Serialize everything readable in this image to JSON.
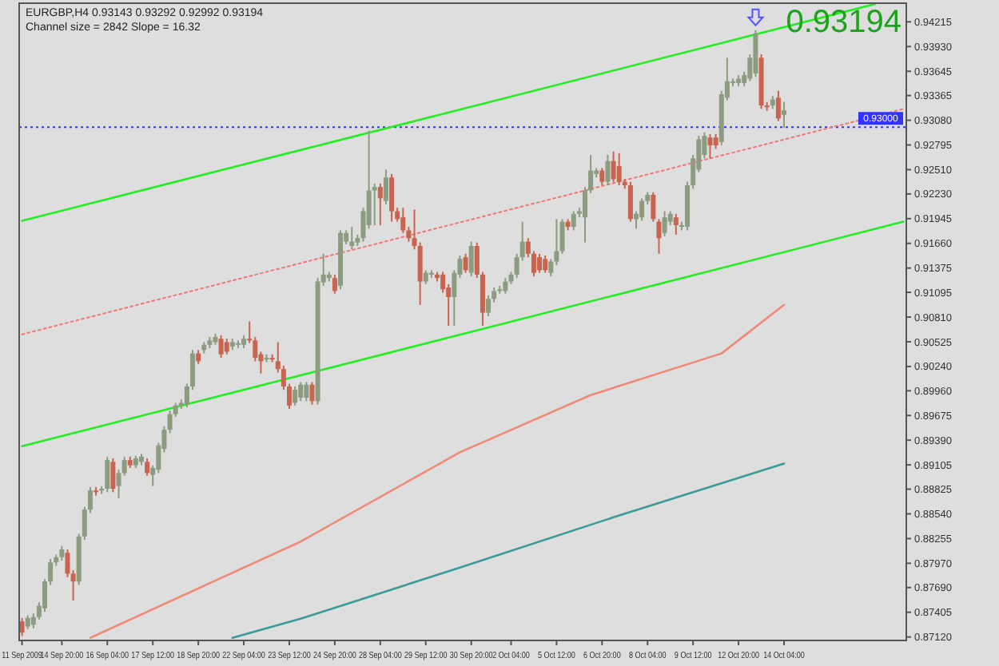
{
  "chart_data": {
    "type": "candlestick",
    "title": "EURGBP,H4  0.93143 0.93292 0.92992 0.93194",
    "subtitle": "Channel size = 2842 Slope = 16.32",
    "annotations": [
      "0.93194"
    ],
    "categories": [
      "11 Sep 2009",
      null,
      null,
      null,
      null,
      null,
      null,
      "14 Sep 20:00",
      null,
      null,
      null,
      null,
      null,
      null,
      null,
      "16 Sep 04:00",
      null,
      null,
      null,
      null,
      null,
      null,
      null,
      "17 Sep 12:00",
      null,
      null,
      null,
      null,
      null,
      null,
      null,
      "18 Sep 20:00",
      null,
      null,
      null,
      null,
      null,
      null,
      null,
      "22 Sep 04:00",
      null,
      null,
      null,
      null,
      null,
      null,
      null,
      "23 Sep 12:00",
      null,
      null,
      null,
      null,
      null,
      null,
      null,
      "24 Sep 20:00",
      null,
      null,
      null,
      null,
      null,
      null,
      null,
      "28 Sep 04:00",
      null,
      null,
      null,
      null,
      null,
      null,
      null,
      "29 Sep 12:00",
      null,
      null,
      null,
      null,
      null,
      null,
      null,
      "30 Sep 20:00",
      null,
      null,
      null,
      null,
      null,
      null,
      "2 Oct 04:00",
      null,
      null,
      null,
      null,
      null,
      null,
      null,
      "5 Oct 12:00",
      null,
      null,
      null,
      null,
      null,
      null,
      null,
      "6 Oct 20:00",
      null,
      null,
      null,
      null,
      null,
      null,
      null,
      "8 Oct 04:00",
      null,
      null,
      null,
      null,
      null,
      null,
      null,
      "9 Oct 12:00",
      null,
      null,
      null,
      null,
      null,
      null,
      null,
      "12 Oct 20:00",
      null,
      null,
      null,
      null,
      null,
      null,
      null,
      "14 Oct 04:00",
      null,
      null,
      null,
      null,
      null,
      null,
      null,
      null,
      null,
      null,
      null,
      null,
      null,
      null,
      null,
      null,
      null,
      null,
      null,
      null,
      null
    ],
    "ohlc": [
      [
        0.873,
        0.8734,
        0.8713,
        0.8717
      ],
      [
        0.8724,
        0.8737,
        0.8721,
        0.8734
      ],
      [
        0.8726,
        0.8739,
        0.8722,
        0.8735
      ],
      [
        0.8735,
        0.8752,
        0.8732,
        0.8748
      ],
      [
        0.8745,
        0.8779,
        0.8741,
        0.8776
      ],
      [
        0.8776,
        0.8802,
        0.8772,
        0.8798
      ],
      [
        0.8798,
        0.8807,
        0.8794,
        0.8804
      ],
      [
        0.8804,
        0.8817,
        0.88,
        0.8813
      ],
      [
        0.8809,
        0.8813,
        0.8781,
        0.8785
      ],
      [
        0.8785,
        0.8789,
        0.8754,
        0.8776
      ],
      [
        0.8776,
        0.8831,
        0.8772,
        0.8828
      ],
      [
        0.8828,
        0.8862,
        0.8824,
        0.8859
      ],
      [
        0.8859,
        0.8885,
        0.8855,
        0.8881
      ],
      [
        0.8881,
        0.8885,
        0.8875,
        0.8879
      ],
      [
        0.8881,
        0.8886,
        0.8877,
        0.8883
      ],
      [
        0.8883,
        0.892,
        0.8879,
        0.8916
      ],
      [
        0.8914,
        0.8918,
        0.8879,
        0.8883
      ],
      [
        0.8886,
        0.8905,
        0.8872,
        0.8901
      ],
      [
        0.8901,
        0.892,
        0.8898,
        0.8916
      ],
      [
        0.8916,
        0.892,
        0.8907,
        0.891
      ],
      [
        0.891,
        0.8921,
        0.8907,
        0.8918
      ],
      [
        0.8914,
        0.8923,
        0.891,
        0.892
      ],
      [
        0.8914,
        0.8918,
        0.8898,
        0.8901
      ],
      [
        0.8899,
        0.891,
        0.8886,
        0.8907
      ],
      [
        0.8905,
        0.8936,
        0.8901,
        0.8933
      ],
      [
        0.8929,
        0.8955,
        0.8925,
        0.8951
      ],
      [
        0.8951,
        0.8973,
        0.8947,
        0.8969
      ],
      [
        0.8969,
        0.8982,
        0.8966,
        0.8979
      ],
      [
        0.8979,
        0.8986,
        0.8975,
        0.8982
      ],
      [
        0.898,
        0.9004,
        0.8977,
        0.9001
      ],
      [
        0.9001,
        0.9043,
        0.8997,
        0.9039
      ],
      [
        0.9039,
        0.9043,
        0.9027,
        0.903
      ],
      [
        0.9043,
        0.9052,
        0.9039,
        0.9049
      ],
      [
        0.9049,
        0.9058,
        0.9045,
        0.9054
      ],
      [
        0.9052,
        0.9062,
        0.9049,
        0.9058
      ],
      [
        0.9056,
        0.906,
        0.9034,
        0.9038
      ],
      [
        0.9052,
        0.9056,
        0.9038,
        0.9041
      ],
      [
        0.9047,
        0.9056,
        0.9043,
        0.9052
      ],
      [
        0.9049,
        0.9054,
        0.9045,
        0.9051
      ],
      [
        0.9049,
        0.906,
        0.9045,
        0.9056
      ],
      [
        0.9056,
        0.9076,
        0.9051,
        0.9054
      ],
      [
        0.9054,
        0.9058,
        0.903,
        0.9034
      ],
      [
        0.9038,
        0.9041,
        0.9016,
        0.903
      ],
      [
        0.9032,
        0.9038,
        0.9029,
        0.9034
      ],
      [
        0.9034,
        0.9038,
        0.9029,
        0.9032
      ],
      [
        0.903,
        0.9052,
        0.9017,
        0.9021
      ],
      [
        0.9021,
        0.9025,
        0.8997,
        0.9001
      ],
      [
        0.9001,
        0.9004,
        0.8975,
        0.8979
      ],
      [
        0.8982,
        0.9001,
        0.8979,
        0.8997
      ],
      [
        0.8988,
        0.9006,
        0.8984,
        0.9003
      ],
      [
        0.8988,
        0.9006,
        0.8984,
        0.9003
      ],
      [
        0.9003,
        0.9006,
        0.898,
        0.8984
      ],
      [
        0.8984,
        0.9126,
        0.898,
        0.9122
      ],
      [
        0.9121,
        0.9154,
        0.9117,
        0.913
      ],
      [
        0.9126,
        0.9133,
        0.9122,
        0.913
      ],
      [
        0.9126,
        0.913,
        0.9108,
        0.9111
      ],
      [
        0.9117,
        0.9181,
        0.9113,
        0.9178
      ],
      [
        0.9168,
        0.9181,
        0.9165,
        0.9178
      ],
      [
        0.9163,
        0.9185,
        0.9159,
        0.9168
      ],
      [
        0.9167,
        0.9176,
        0.9163,
        0.9172
      ],
      [
        0.9172,
        0.9207,
        0.9168,
        0.9203
      ],
      [
        0.9187,
        0.9296,
        0.9183,
        0.9227
      ],
      [
        0.9227,
        0.9235,
        0.9187,
        0.9231
      ],
      [
        0.9231,
        0.9235,
        0.9187,
        0.9218
      ],
      [
        0.9215,
        0.9251,
        0.9211,
        0.9242
      ],
      [
        0.9242,
        0.9246,
        0.9191,
        0.9203
      ],
      [
        0.9203,
        0.9207,
        0.9191,
        0.9194
      ],
      [
        0.9196,
        0.9207,
        0.9178,
        0.9181
      ],
      [
        0.9181,
        0.9185,
        0.9168,
        0.9172
      ],
      [
        0.9172,
        0.9205,
        0.9159,
        0.9163
      ],
      [
        0.9163,
        0.9167,
        0.9095,
        0.9122
      ],
      [
        0.9122,
        0.9135,
        0.9119,
        0.9132
      ],
      [
        0.913,
        0.9135,
        0.9126,
        0.9132
      ],
      [
        0.913,
        0.9133,
        0.9122,
        0.9126
      ],
      [
        0.913,
        0.9133,
        0.9109,
        0.9113
      ],
      [
        0.9115,
        0.9119,
        0.9071,
        0.9104
      ],
      [
        0.9104,
        0.9135,
        0.9071,
        0.9132
      ],
      [
        0.913,
        0.9152,
        0.9126,
        0.9148
      ],
      [
        0.915,
        0.9154,
        0.9132,
        0.9135
      ],
      [
        0.9132,
        0.9168,
        0.9128,
        0.9163
      ],
      [
        0.9163,
        0.9167,
        0.9126,
        0.913
      ],
      [
        0.913,
        0.9133,
        0.9071,
        0.9086
      ],
      [
        0.9086,
        0.9106,
        0.9082,
        0.9102
      ],
      [
        0.9102,
        0.9115,
        0.9098,
        0.9111
      ],
      [
        0.9111,
        0.9117,
        0.9108,
        0.9113
      ],
      [
        0.9111,
        0.9126,
        0.9108,
        0.9122
      ],
      [
        0.9122,
        0.9133,
        0.9119,
        0.913
      ],
      [
        0.913,
        0.9154,
        0.9126,
        0.915
      ],
      [
        0.915,
        0.9191,
        0.9146,
        0.9168
      ],
      [
        0.9168,
        0.9172,
        0.915,
        0.9154
      ],
      [
        0.9154,
        0.9157,
        0.9128,
        0.9132
      ],
      [
        0.915,
        0.9154,
        0.9132,
        0.9135
      ],
      [
        0.9148,
        0.9152,
        0.9132,
        0.9135
      ],
      [
        0.9132,
        0.9148,
        0.9128,
        0.9145
      ],
      [
        0.9145,
        0.9194,
        0.9141,
        0.9157
      ],
      [
        0.9157,
        0.9194,
        0.9154,
        0.9191
      ],
      [
        0.9191,
        0.9194,
        0.9181,
        0.9185
      ],
      [
        0.9185,
        0.9203,
        0.9181,
        0.92
      ],
      [
        0.92,
        0.9207,
        0.9196,
        0.9203
      ],
      [
        0.9196,
        0.9231,
        0.9167,
        0.9227
      ],
      [
        0.9227,
        0.9268,
        0.9224,
        0.925
      ],
      [
        0.9246,
        0.9253,
        0.9242,
        0.925
      ],
      [
        0.925,
        0.9253,
        0.9233,
        0.9237
      ],
      [
        0.9237,
        0.9268,
        0.9233,
        0.9261
      ],
      [
        0.9261,
        0.9272,
        0.9237,
        0.924
      ],
      [
        0.9255,
        0.927,
        0.9233,
        0.9237
      ],
      [
        0.9237,
        0.924,
        0.9229,
        0.9233
      ],
      [
        0.9233,
        0.9237,
        0.9191,
        0.9194
      ],
      [
        0.9194,
        0.9203,
        0.9183,
        0.92
      ],
      [
        0.9196,
        0.9218,
        0.9192,
        0.9215
      ],
      [
        0.9215,
        0.9225,
        0.9211,
        0.9222
      ],
      [
        0.9222,
        0.9225,
        0.9191,
        0.9194
      ],
      [
        0.9191,
        0.9194,
        0.9154,
        0.9172
      ],
      [
        0.9178,
        0.9203,
        0.9174,
        0.9196
      ],
      [
        0.9191,
        0.9203,
        0.9187,
        0.92
      ],
      [
        0.9196,
        0.92,
        0.9176,
        0.9187
      ],
      [
        0.9185,
        0.9191,
        0.9181,
        0.9187
      ],
      [
        0.9185,
        0.9237,
        0.9181,
        0.9233
      ],
      [
        0.9233,
        0.9268,
        0.9229,
        0.9264
      ],
      [
        0.9251,
        0.929,
        0.9248,
        0.9286
      ],
      [
        0.9268,
        0.9294,
        0.9264,
        0.929
      ],
      [
        0.9288,
        0.9292,
        0.9264,
        0.9279
      ],
      [
        0.9288,
        0.9292,
        0.9275,
        0.9279
      ],
      [
        0.9283,
        0.9342,
        0.9279,
        0.9338
      ],
      [
        0.9334,
        0.938,
        0.9331,
        0.9353
      ],
      [
        0.9351,
        0.9356,
        0.9347,
        0.9353
      ],
      [
        0.9351,
        0.936,
        0.9347,
        0.9356
      ],
      [
        0.9351,
        0.9364,
        0.9347,
        0.936
      ],
      [
        0.9356,
        0.9384,
        0.9353,
        0.938
      ],
      [
        0.9362,
        0.9412,
        0.9358,
        0.9408
      ],
      [
        0.938,
        0.9384,
        0.9321,
        0.9325
      ],
      [
        0.9325,
        0.9329,
        0.9319,
        0.9323
      ],
      [
        0.9325,
        0.9336,
        0.9321,
        0.9332
      ],
      [
        0.9334,
        0.9342,
        0.9307,
        0.931
      ],
      [
        0.93143,
        0.93292,
        0.92992,
        0.93194
      ],
      null,
      null,
      null,
      null,
      null,
      null,
      null,
      null,
      null,
      null,
      null,
      null,
      null,
      null,
      null,
      null,
      null,
      null,
      null,
      null,
      null
    ],
    "colors": [
      "#c86450",
      "#8c9c80",
      "#8c9c80",
      "#8c9c80",
      "#8c9c80",
      "#8c9c80",
      "#8c9c80",
      "#8c9c80",
      "#c86450",
      "#c86450",
      "#8c9c80",
      "#8c9c80",
      "#8c9c80",
      "#c86450",
      "#8c9c80",
      "#8c9c80",
      "#c86450",
      "#8c9c80",
      "#8c9c80",
      "#c86450",
      "#8c9c80",
      "#8c9c80",
      "#c86450",
      "#8c9c80",
      "#8c9c80",
      "#8c9c80",
      "#8c9c80",
      "#8c9c80",
      "#8c9c80",
      "#8c9c80",
      "#8c9c80",
      "#c86450",
      "#8c9c80",
      "#8c9c80",
      "#8c9c80",
      "#c86450",
      "#c86450",
      "#8c9c80",
      "#8c9c80",
      "#8c9c80",
      "#c86450",
      "#c86450",
      "#c86450",
      "#8c9c80",
      "#c86450",
      "#c86450",
      "#c86450",
      "#c86450",
      "#8c9c80",
      "#8c9c80",
      "#8c9c80",
      "#c86450",
      "#8c9c80",
      "#8c9c80",
      "#8c9c80",
      "#c86450",
      "#8c9c80",
      "#8c9c80",
      "#8c9c80",
      "#8c9c80",
      "#8c9c80",
      "#8c9c80",
      "#8c9c80",
      "#c86450",
      "#8c9c80",
      "#c86450",
      "#c86450",
      "#c86450",
      "#c86450",
      "#c86450",
      "#c86450",
      "#8c9c80",
      "#8c9c80",
      "#c86450",
      "#c86450",
      "#c86450",
      "#8c9c80",
      "#8c9c80",
      "#c86450",
      "#8c9c80",
      "#c86450",
      "#c86450",
      "#8c9c80",
      "#8c9c80",
      "#8c9c80",
      "#8c9c80",
      "#8c9c80",
      "#8c9c80",
      "#8c9c80",
      "#c86450",
      "#c86450",
      "#c86450",
      "#c86450",
      "#8c9c80",
      "#8c9c80",
      "#8c9c80",
      "#c86450",
      "#8c9c80",
      "#8c9c80",
      "#8c9c80",
      "#8c9c80",
      "#8c9c80",
      "#c86450",
      "#8c9c80",
      "#c86450",
      "#c86450",
      "#c86450",
      "#c86450",
      "#8c9c80",
      "#8c9c80",
      "#8c9c80",
      "#c86450",
      "#c86450",
      "#8c9c80",
      "#8c9c80",
      "#c86450",
      "#8c9c80",
      "#8c9c80",
      "#8c9c80",
      "#8c9c80",
      "#8c9c80",
      "#c86450",
      "#c86450",
      "#8c9c80",
      "#8c9c80",
      "#8c9c80",
      "#8c9c80",
      "#8c9c80",
      "#8c9c80",
      "#8c9c80",
      "#c86450",
      "#c86450",
      "#8c9c80",
      "#c86450",
      "#8c9c80",
      null,
      null,
      null,
      null,
      null,
      null,
      null,
      null,
      null,
      null,
      null,
      null,
      null,
      null,
      null,
      null,
      null,
      null,
      null,
      null,
      null
    ],
    "series": [
      {
        "type": "line",
        "values": [
          0.9192,
          null,
          null,
          null,
          null,
          null,
          null,
          null,
          null,
          null,
          null,
          null,
          null,
          null,
          null,
          null,
          null,
          null,
          null,
          null,
          null,
          null,
          null,
          null,
          null,
          null,
          null,
          null,
          null,
          null,
          null,
          null,
          null,
          null,
          null,
          null,
          null,
          null,
          null,
          null,
          null,
          null,
          null,
          null,
          null,
          null,
          null,
          null,
          null,
          null,
          null,
          null,
          null,
          null,
          null,
          null,
          null,
          null,
          null,
          null,
          null,
          null,
          null,
          null,
          null,
          null,
          null,
          null,
          null,
          null,
          null,
          null,
          null,
          null,
          null,
          null,
          null,
          null,
          null,
          null,
          null,
          null,
          null,
          null,
          null,
          null,
          null,
          null,
          null,
          null,
          null,
          null,
          null,
          null,
          null,
          null,
          null,
          null,
          null,
          null,
          null,
          null,
          null,
          null,
          null,
          null,
          null,
          null,
          null,
          null,
          null,
          null,
          null,
          null,
          null,
          null,
          null,
          null,
          null,
          null,
          null,
          null,
          null,
          null,
          null,
          null,
          null,
          null,
          null,
          null,
          null,
          null,
          null,
          null,
          null,
          null,
          null,
          null,
          null,
          null,
          null,
          null,
          null,
          null,
          null,
          null,
          null,
          null,
          null,
          null,
          0.9442,
          null,
          null,
          null,
          null,
          null
        ],
        "color": "#22ee22",
        "line_style": "solid"
      },
      {
        "type": "line",
        "values": [
          0.9061,
          null,
          null,
          null,
          null,
          null,
          null,
          null,
          null,
          null,
          null,
          null,
          null,
          null,
          null,
          null,
          null,
          null,
          null,
          null,
          null,
          null,
          null,
          null,
          null,
          null,
          null,
          null,
          null,
          null,
          null,
          null,
          null,
          null,
          null,
          null,
          null,
          null,
          null,
          null,
          null,
          null,
          null,
          null,
          null,
          null,
          null,
          null,
          null,
          null,
          null,
          null,
          null,
          null,
          null,
          null,
          null,
          null,
          null,
          null,
          null,
          null,
          null,
          null,
          null,
          null,
          null,
          null,
          null,
          null,
          null,
          null,
          null,
          null,
          null,
          null,
          null,
          null,
          null,
          null,
          null,
          null,
          null,
          null,
          null,
          null,
          null,
          null,
          null,
          null,
          null,
          null,
          null,
          null,
          null,
          null,
          null,
          null,
          null,
          null,
          null,
          null,
          null,
          null,
          null,
          null,
          null,
          null,
          null,
          null,
          null,
          null,
          null,
          null,
          null,
          null,
          null,
          null,
          null,
          null,
          null,
          null,
          null,
          null,
          null,
          null,
          null,
          null,
          null,
          null,
          null,
          null,
          null,
          null,
          null,
          null,
          null,
          null,
          null,
          null,
          null,
          null,
          null,
          null,
          null,
          null,
          null,
          null,
          null,
          null,
          null,
          null,
          null,
          null,
          null,
          0.9321
        ],
        "color": "#f07878",
        "line_style": "dotted"
      },
      {
        "type": "line",
        "values": [
          0.8932,
          null,
          null,
          null,
          null,
          null,
          null,
          null,
          null,
          null,
          null,
          null,
          null,
          null,
          null,
          null,
          null,
          null,
          null,
          null,
          null,
          null,
          null,
          null,
          null,
          null,
          null,
          null,
          null,
          null,
          null,
          null,
          null,
          null,
          null,
          null,
          null,
          null,
          null,
          null,
          null,
          null,
          null,
          null,
          null,
          null,
          null,
          null,
          null,
          null,
          null,
          null,
          null,
          null,
          null,
          null,
          null,
          null,
          null,
          null,
          null,
          null,
          null,
          null,
          null,
          null,
          null,
          null,
          null,
          null,
          null,
          null,
          null,
          null,
          null,
          null,
          null,
          null,
          null,
          null,
          null,
          null,
          null,
          null,
          null,
          null,
          null,
          null,
          null,
          null,
          null,
          null,
          null,
          null,
          null,
          null,
          null,
          null,
          null,
          null,
          null,
          null,
          null,
          null,
          null,
          null,
          null,
          null,
          null,
          null,
          null,
          null,
          null,
          null,
          null,
          null,
          null,
          null,
          null,
          null,
          null,
          null,
          null,
          null,
          null,
          null,
          null,
          null,
          null,
          null,
          null,
          null,
          null,
          null,
          null,
          null,
          null,
          null,
          null,
          null,
          null,
          null,
          null,
          null,
          null,
          null,
          null,
          null,
          null,
          null,
          null,
          null,
          null,
          null,
          null,
          0.9191
        ],
        "color": "#22ee22",
        "line_style": "solid"
      },
      {
        "type": "line",
        "values": [
          null,
          null,
          null,
          null,
          null,
          null,
          null,
          null,
          null,
          null,
          null,
          null,
          0.8711,
          null,
          null,
          null,
          null,
          null,
          null,
          null,
          null,
          null,
          null,
          null,
          null,
          null,
          null,
          null,
          null,
          null,
          null,
          null,
          null,
          null,
          null,
          null,
          null,
          null,
          null,
          null,
          null,
          null,
          null,
          null,
          null,
          null,
          null,
          null,
          null,
          0.8822,
          null,
          null,
          null,
          null,
          null,
          null,
          null,
          null,
          null,
          null,
          null,
          null,
          null,
          null,
          null,
          null,
          null,
          null,
          null,
          null,
          null,
          null,
          null,
          null,
          null,
          null,
          null,
          0.8925,
          null,
          null,
          null,
          null,
          null,
          null,
          null,
          null,
          null,
          null,
          null,
          null,
          null,
          null,
          null,
          null,
          null,
          null,
          null,
          null,
          null,
          null,
          0.8991,
          null,
          null,
          null,
          null,
          null,
          null,
          null,
          null,
          null,
          null,
          null,
          null,
          null,
          null,
          null,
          null,
          null,
          null,
          null,
          null,
          null,
          null,
          0.9039,
          null,
          null,
          null,
          null,
          null,
          null,
          null,
          null,
          null,
          null,
          0.9095,
          null,
          null,
          null,
          null,
          null,
          null,
          null,
          null,
          null,
          null,
          null,
          null,
          null,
          null,
          null,
          null,
          null,
          null,
          null,
          null,
          null
        ],
        "color": "#f08a78",
        "line_style": "solid"
      },
      {
        "type": "line",
        "values": [
          null,
          null,
          null,
          null,
          null,
          null,
          null,
          null,
          null,
          null,
          null,
          null,
          null,
          null,
          null,
          null,
          null,
          null,
          null,
          null,
          null,
          null,
          null,
          null,
          null,
          null,
          null,
          null,
          null,
          null,
          null,
          null,
          null,
          null,
          null,
          null,
          null,
          0.8711,
          null,
          null,
          null,
          null,
          null,
          null,
          null,
          null,
          null,
          null,
          null,
          0.8733,
          null,
          null,
          null,
          null,
          null,
          null,
          null,
          null,
          null,
          null,
          null,
          null,
          null,
          null,
          null,
          null,
          null,
          null,
          null,
          null,
          null,
          null,
          null,
          null,
          null,
          null,
          null,
          0.8792,
          null,
          null,
          null,
          null,
          null,
          null,
          null,
          null,
          null,
          null,
          null,
          null,
          null,
          null,
          null,
          null,
          null,
          null,
          null,
          null,
          null,
          null,
          null,
          null,
          null,
          null,
          0.885,
          null,
          null,
          null,
          null,
          null,
          null,
          null,
          null,
          null,
          null,
          null,
          null,
          null,
          null,
          null,
          null,
          null,
          null,
          null,
          null,
          null,
          null,
          null,
          null,
          null,
          null,
          null,
          null,
          null,
          0.8912,
          null,
          null,
          null,
          null,
          null,
          null,
          null,
          null,
          null,
          null,
          null,
          null,
          null,
          null,
          null,
          null,
          null,
          null,
          null,
          null,
          null
        ],
        "color": "#3a9a9a",
        "line_style": "solid"
      }
    ],
    "ref_lines": [
      {
        "axis": "y",
        "value": 0.93,
        "label": "0.93000",
        "color": "#3333ff",
        "line_style": "dotted"
      }
    ],
    "ylim": [
      0.8708,
      0.9443
    ],
    "yticks": [
      0.94215,
      {
        "value": 0.9393,
        "label": "0.93930"
      },
      0.93645,
      0.93365,
      {
        "value": 0.9308,
        "label": "0.93080"
      },
      0.92795,
      {
        "value": 0.9251,
        "label": "0.92510"
      },
      {
        "value": 0.9223,
        "label": "0.92230"
      },
      0.91945,
      {
        "value": 0.9166,
        "label": "0.91660"
      },
      0.91375,
      0.91095,
      {
        "value": 0.9081,
        "label": "0.90810"
      },
      0.90525,
      {
        "value": 0.9024,
        "label": "0.90240"
      },
      {
        "value": 0.8996,
        "label": "0.89960"
      },
      0.89675,
      {
        "value": 0.8939,
        "label": "0.89390"
      },
      0.89105,
      0.88825,
      {
        "value": 0.8854,
        "label": "0.88540"
      },
      0.88255,
      {
        "value": 0.8797,
        "label": "0.87970"
      },
      {
        "value": 0.8769,
        "label": "0.87690"
      },
      0.87405,
      {
        "value": 0.8712,
        "label": "0.87120"
      }
    ]
  }
}
